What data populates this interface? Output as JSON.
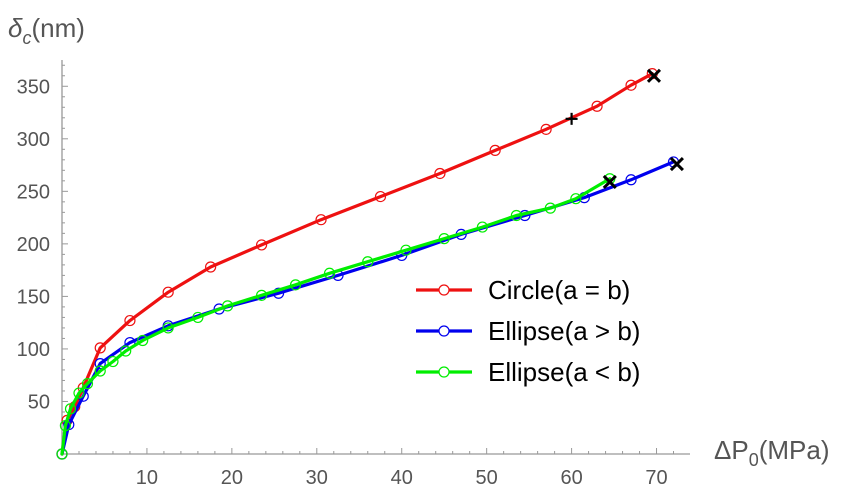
{
  "chart_data": {
    "type": "line",
    "ylabel": {
      "symbol": "δ",
      "sub": "c",
      "unit": "(nm)"
    },
    "xlabel": {
      "symbol": "ΔP",
      "sub": "0",
      "unit": "(MPa)"
    },
    "xlim": [
      0,
      73
    ],
    "ylim": [
      0,
      375
    ],
    "xticks": [
      10,
      20,
      30,
      40,
      50,
      60,
      70
    ],
    "yticks": [
      50,
      100,
      150,
      200,
      250,
      300,
      350
    ],
    "grid": false,
    "legend_position": "center-right",
    "series": [
      {
        "name": "Circle(a = b)",
        "color": "#ee1111",
        "x": [
          0,
          0.6,
          1.5,
          2.5,
          4.5,
          8,
          12.5,
          17.5,
          23.5,
          30.5,
          37.5,
          44.5,
          51,
          57,
          63,
          67,
          69.5
        ],
        "y": [
          0,
          32,
          45,
          63,
          101,
          127,
          154,
          178,
          199,
          223,
          245,
          267,
          289,
          309,
          331,
          351,
          362
        ]
      },
      {
        "name": "Ellipse(a > b)",
        "color": "#0000ee",
        "x": [
          0,
          0.8,
          2.5,
          4.5,
          8,
          12.5,
          18.5,
          25.5,
          32.5,
          40,
          47,
          54.5,
          61.5,
          67,
          72
        ],
        "y": [
          0,
          28,
          55,
          86,
          106,
          122,
          138,
          153,
          170,
          189,
          209,
          227,
          244,
          261,
          278
        ]
      },
      {
        "name": "Ellipse(a < b)",
        "color": "#00ee00",
        "x": [
          0,
          0.4,
          1,
          2,
          3,
          4.5,
          6,
          7.5,
          9.5,
          12.5,
          16,
          19.5,
          23.5,
          27.5,
          31.5,
          36,
          40.5,
          45,
          49.5,
          53.5,
          57.5,
          60.5,
          64.5
        ],
        "y": [
          0,
          27,
          43,
          58,
          67,
          79,
          88,
          98,
          108,
          120,
          130,
          141,
          151,
          161,
          172,
          183,
          194,
          205,
          216,
          227,
          234,
          243,
          262
        ]
      }
    ],
    "markers": [
      {
        "type": "plus",
        "x": 60,
        "y": 319
      },
      {
        "type": "cross",
        "x": 69.7,
        "y": 360
      },
      {
        "type": "cross",
        "x": 72.4,
        "y": 276
      },
      {
        "type": "cross",
        "x": 64.5,
        "y": 259
      }
    ]
  }
}
